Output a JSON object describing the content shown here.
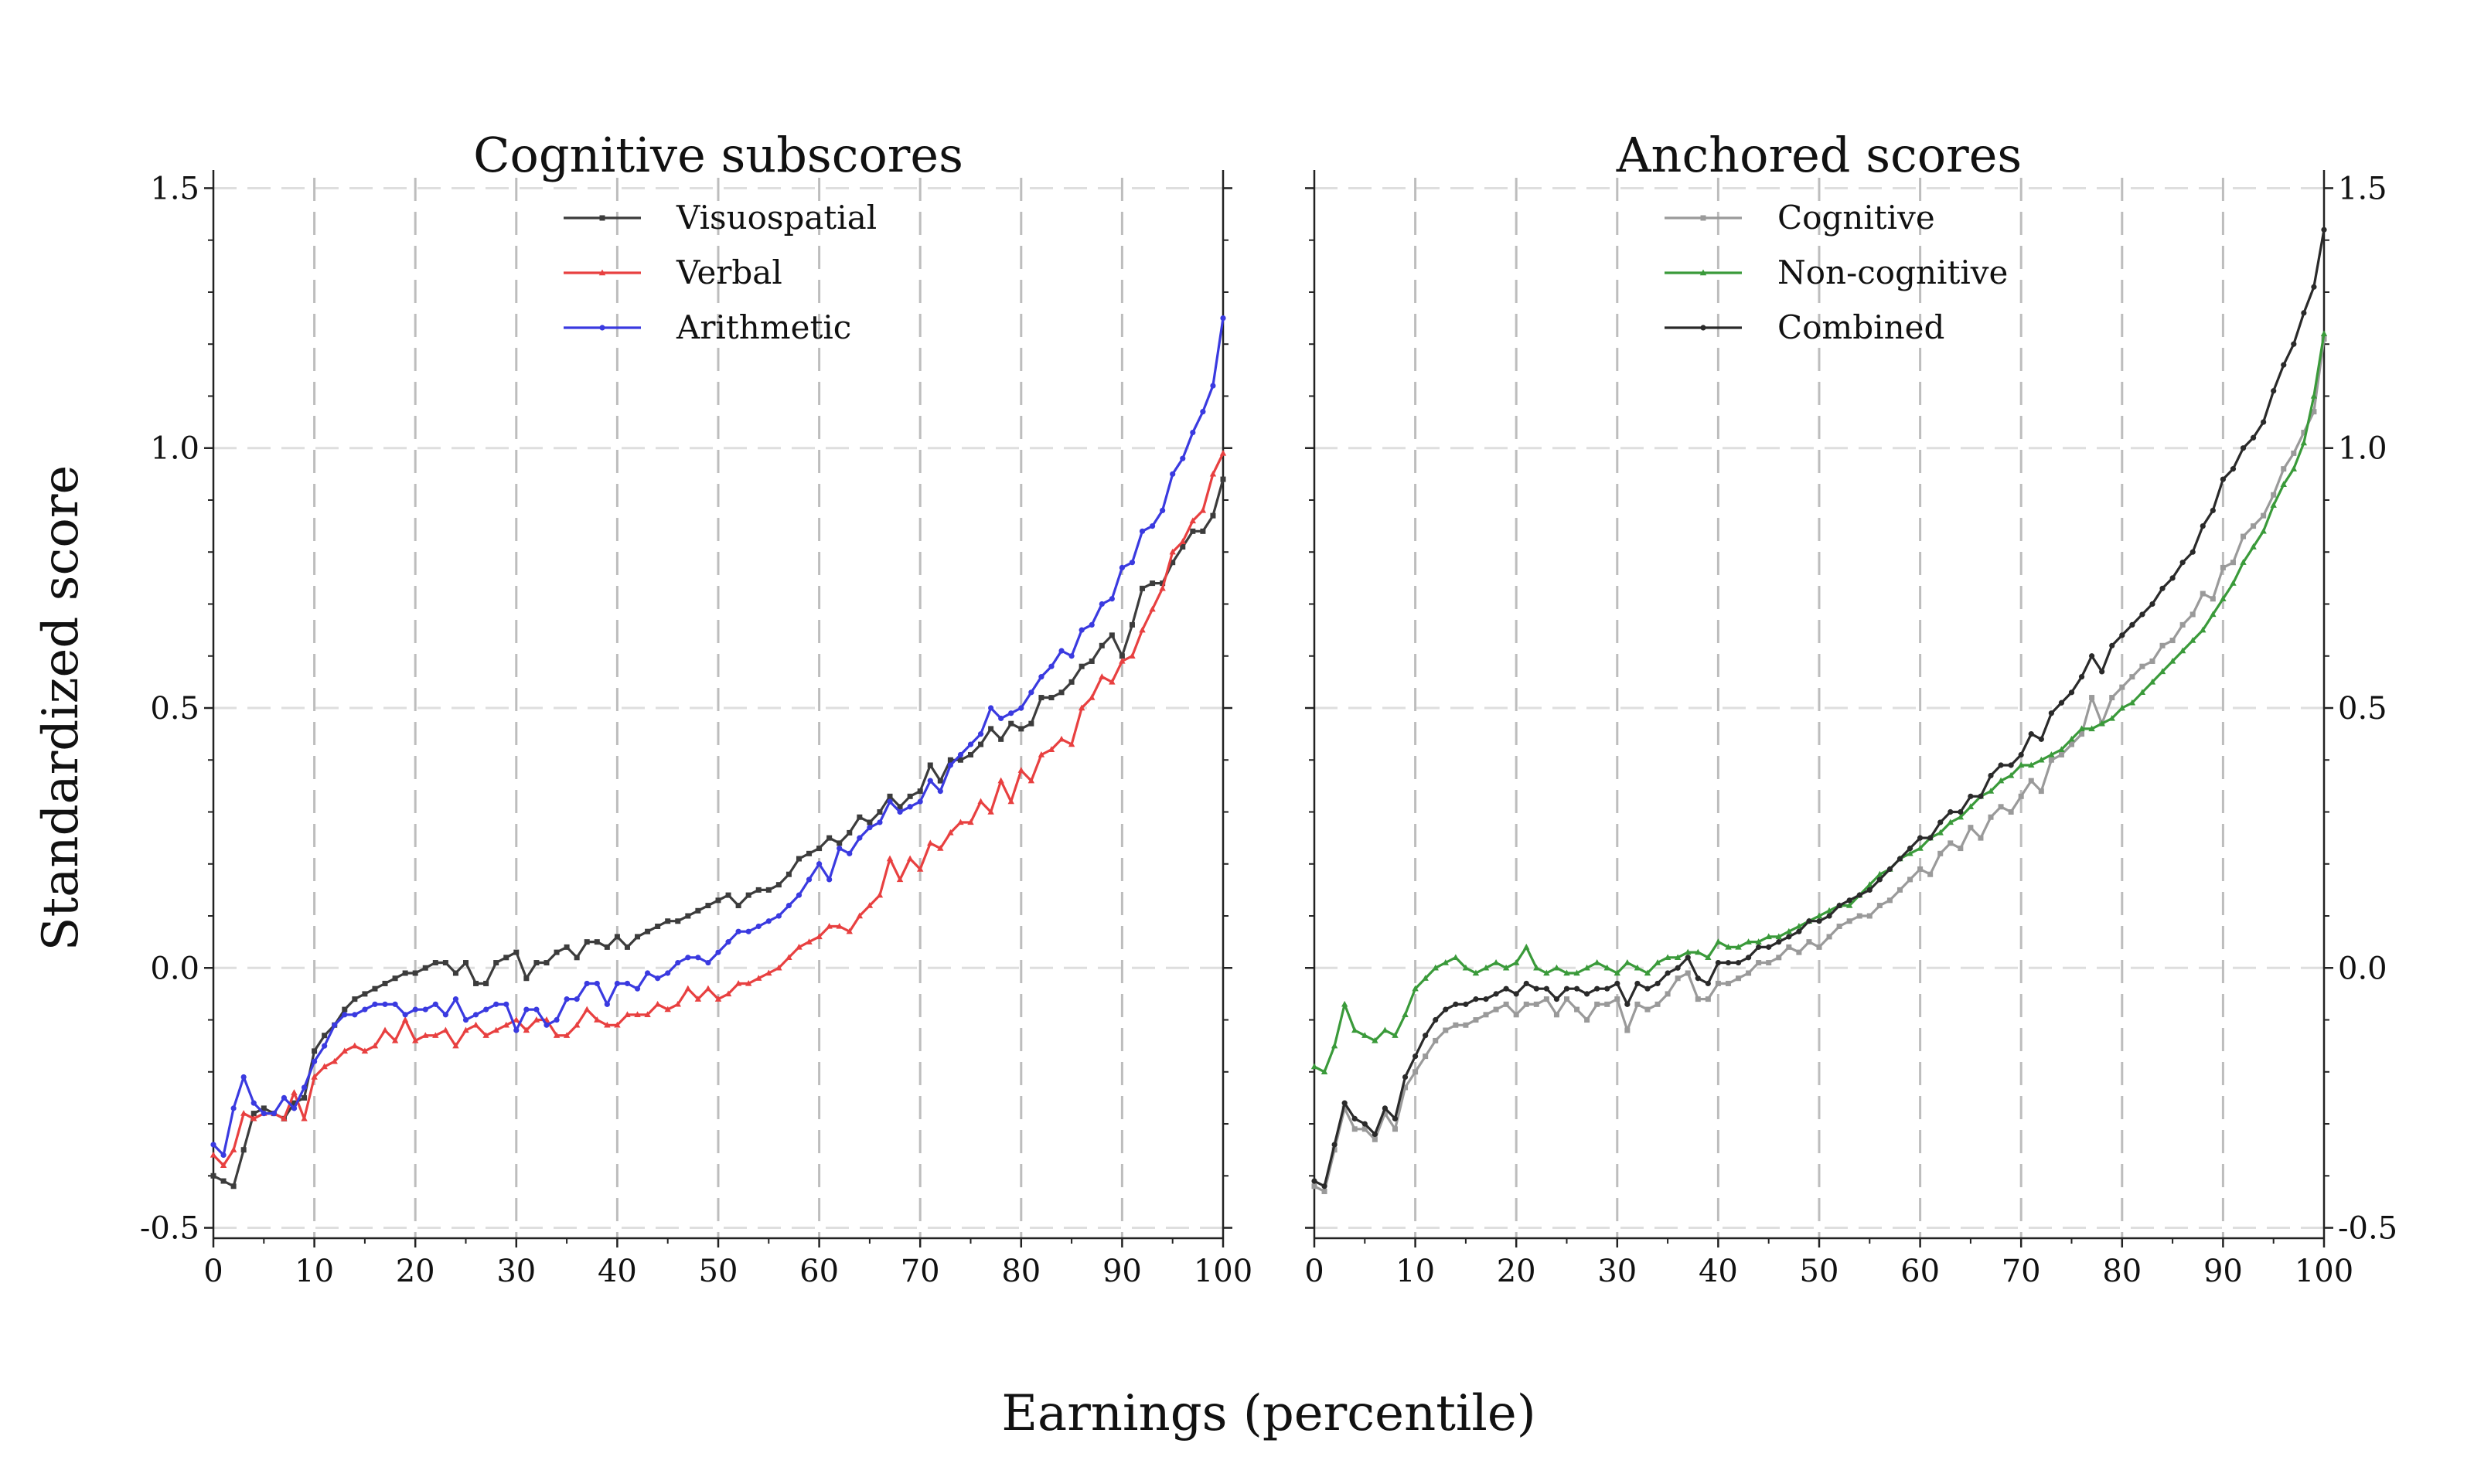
{
  "figure": {
    "xlabel": "Earnings (percentile)",
    "ylabel": "Standardized score"
  },
  "chart_data": [
    {
      "type": "line",
      "title": "Cognitive subscores",
      "xlim": [
        0,
        100
      ],
      "ylim": [
        -0.52,
        1.52
      ],
      "xticks": [
        "0",
        "10",
        "20",
        "30",
        "40",
        "50",
        "60",
        "70",
        "80",
        "90",
        "100"
      ],
      "yticks": [
        "-0.5",
        "0.0",
        "0.5",
        "1.0",
        "1.5"
      ],
      "ytick_side": "left",
      "legend": "top-center",
      "grid": "dashed",
      "x_start": 0,
      "x_step": 1,
      "series": [
        {
          "name": "Visuospatial",
          "color": "#3c3c3c",
          "marker": "square",
          "values": [
            -0.4,
            -0.41,
            -0.42,
            -0.35,
            -0.28,
            -0.27,
            -0.28,
            -0.29,
            -0.26,
            -0.25,
            -0.16,
            -0.13,
            -0.11,
            -0.08,
            -0.06,
            -0.05,
            -0.04,
            -0.03,
            -0.02,
            -0.01,
            -0.01,
            0.0,
            0.01,
            0.01,
            -0.01,
            0.01,
            -0.03,
            -0.03,
            0.01,
            0.02,
            0.03,
            -0.02,
            0.01,
            0.01,
            0.03,
            0.04,
            0.02,
            0.05,
            0.05,
            0.04,
            0.06,
            0.04,
            0.06,
            0.07,
            0.08,
            0.09,
            0.09,
            0.1,
            0.11,
            0.12,
            0.13,
            0.14,
            0.12,
            0.14,
            0.15,
            0.15,
            0.16,
            0.18,
            0.21,
            0.22,
            0.23,
            0.25,
            0.24,
            0.26,
            0.29,
            0.28,
            0.3,
            0.33,
            0.31,
            0.33,
            0.34,
            0.39,
            0.36,
            0.4,
            0.4,
            0.41,
            0.43,
            0.46,
            0.44,
            0.47,
            0.46,
            0.47,
            0.52,
            0.52,
            0.53,
            0.55,
            0.58,
            0.59,
            0.62,
            0.64,
            0.6,
            0.66,
            0.73,
            0.74,
            0.74,
            0.78,
            0.81,
            0.84,
            0.84,
            0.87,
            0.94
          ]
        },
        {
          "name": "Verbal",
          "color": "#e84040",
          "marker": "triangle",
          "values": [
            -0.36,
            -0.38,
            -0.35,
            -0.28,
            -0.29,
            -0.28,
            -0.28,
            -0.29,
            -0.24,
            -0.29,
            -0.21,
            -0.19,
            -0.18,
            -0.16,
            -0.15,
            -0.16,
            -0.15,
            -0.12,
            -0.14,
            -0.1,
            -0.14,
            -0.13,
            -0.13,
            -0.12,
            -0.15,
            -0.12,
            -0.11,
            -0.13,
            -0.12,
            -0.11,
            -0.1,
            -0.12,
            -0.1,
            -0.1,
            -0.13,
            -0.13,
            -0.11,
            -0.08,
            -0.1,
            -0.11,
            -0.11,
            -0.09,
            -0.09,
            -0.09,
            -0.07,
            -0.08,
            -0.07,
            -0.04,
            -0.06,
            -0.04,
            -0.06,
            -0.05,
            -0.03,
            -0.03,
            -0.02,
            -0.01,
            0.0,
            0.02,
            0.04,
            0.05,
            0.06,
            0.08,
            0.08,
            0.07,
            0.1,
            0.12,
            0.14,
            0.21,
            0.17,
            0.21,
            0.19,
            0.24,
            0.23,
            0.26,
            0.28,
            0.28,
            0.32,
            0.3,
            0.36,
            0.32,
            0.38,
            0.36,
            0.41,
            0.42,
            0.44,
            0.43,
            0.5,
            0.52,
            0.56,
            0.55,
            0.59,
            0.6,
            0.65,
            0.69,
            0.73,
            0.8,
            0.82,
            0.86,
            0.88,
            0.95,
            0.99
          ]
        },
        {
          "name": "Arithmetic",
          "color": "#3a3ae0",
          "marker": "circle",
          "values": [
            -0.34,
            -0.36,
            -0.27,
            -0.21,
            -0.26,
            -0.28,
            -0.28,
            -0.25,
            -0.27,
            -0.23,
            -0.18,
            -0.15,
            -0.11,
            -0.09,
            -0.09,
            -0.08,
            -0.07,
            -0.07,
            -0.07,
            -0.09,
            -0.08,
            -0.08,
            -0.07,
            -0.09,
            -0.06,
            -0.1,
            -0.09,
            -0.08,
            -0.07,
            -0.07,
            -0.12,
            -0.08,
            -0.08,
            -0.11,
            -0.1,
            -0.06,
            -0.06,
            -0.03,
            -0.03,
            -0.07,
            -0.03,
            -0.03,
            -0.04,
            -0.01,
            -0.02,
            -0.01,
            0.01,
            0.02,
            0.02,
            0.01,
            0.03,
            0.05,
            0.07,
            0.07,
            0.08,
            0.09,
            0.1,
            0.12,
            0.14,
            0.17,
            0.2,
            0.17,
            0.23,
            0.22,
            0.25,
            0.27,
            0.28,
            0.32,
            0.3,
            0.31,
            0.32,
            0.36,
            0.34,
            0.39,
            0.41,
            0.43,
            0.45,
            0.5,
            0.48,
            0.49,
            0.5,
            0.53,
            0.56,
            0.58,
            0.61,
            0.6,
            0.65,
            0.66,
            0.7,
            0.71,
            0.77,
            0.78,
            0.84,
            0.85,
            0.88,
            0.95,
            0.98,
            1.03,
            1.07,
            1.12,
            1.25
          ]
        }
      ]
    },
    {
      "type": "line",
      "title": "Anchored scores",
      "xlim": [
        0,
        100
      ],
      "ylim": [
        -0.52,
        1.52
      ],
      "xticks": [
        "0",
        "10",
        "20",
        "30",
        "40",
        "50",
        "60",
        "70",
        "80",
        "90",
        "100"
      ],
      "yticks": [
        "-0.5",
        "0.0",
        "0.5",
        "1.0",
        "1.5"
      ],
      "ytick_side": "right",
      "legend": "top-center",
      "grid": "dashed",
      "x_start": 0,
      "x_step": 1,
      "series": [
        {
          "name": "Cognitive",
          "color": "#9a9a9a",
          "marker": "square",
          "values": [
            -0.42,
            -0.43,
            -0.35,
            -0.27,
            -0.31,
            -0.31,
            -0.33,
            -0.28,
            -0.31,
            -0.23,
            -0.2,
            -0.17,
            -0.14,
            -0.12,
            -0.11,
            -0.11,
            -0.1,
            -0.09,
            -0.08,
            -0.07,
            -0.09,
            -0.07,
            -0.07,
            -0.06,
            -0.09,
            -0.06,
            -0.08,
            -0.1,
            -0.07,
            -0.07,
            -0.06,
            -0.12,
            -0.07,
            -0.08,
            -0.07,
            -0.05,
            -0.02,
            -0.01,
            -0.06,
            -0.06,
            -0.03,
            -0.03,
            -0.02,
            -0.01,
            0.01,
            0.01,
            0.02,
            0.04,
            0.03,
            0.05,
            0.04,
            0.06,
            0.08,
            0.09,
            0.1,
            0.1,
            0.12,
            0.13,
            0.15,
            0.17,
            0.19,
            0.18,
            0.22,
            0.24,
            0.23,
            0.27,
            0.25,
            0.29,
            0.31,
            0.3,
            0.33,
            0.36,
            0.34,
            0.4,
            0.41,
            0.43,
            0.45,
            0.52,
            0.47,
            0.52,
            0.54,
            0.56,
            0.58,
            0.59,
            0.62,
            0.63,
            0.66,
            0.68,
            0.72,
            0.71,
            0.77,
            0.78,
            0.83,
            0.85,
            0.87,
            0.91,
            0.96,
            0.99,
            1.03,
            1.07,
            1.21
          ]
        },
        {
          "name": "Non-cognitive",
          "color": "#3a9a3a",
          "marker": "triangle",
          "values": [
            -0.19,
            -0.2,
            -0.15,
            -0.07,
            -0.12,
            -0.13,
            -0.14,
            -0.12,
            -0.13,
            -0.09,
            -0.04,
            -0.02,
            0.0,
            0.01,
            0.02,
            0.0,
            -0.01,
            0.0,
            0.01,
            0.0,
            0.01,
            0.04,
            0.0,
            -0.01,
            0.0,
            -0.01,
            -0.01,
            0.0,
            0.01,
            0.0,
            -0.01,
            0.01,
            0.0,
            -0.01,
            0.01,
            0.02,
            0.02,
            0.03,
            0.03,
            0.02,
            0.05,
            0.04,
            0.04,
            0.05,
            0.05,
            0.06,
            0.06,
            0.07,
            0.08,
            0.09,
            0.1,
            0.11,
            0.12,
            0.12,
            0.14,
            0.16,
            0.18,
            0.19,
            0.21,
            0.22,
            0.23,
            0.25,
            0.26,
            0.28,
            0.29,
            0.31,
            0.33,
            0.34,
            0.36,
            0.37,
            0.39,
            0.39,
            0.4,
            0.41,
            0.42,
            0.44,
            0.46,
            0.46,
            0.47,
            0.48,
            0.5,
            0.51,
            0.53,
            0.55,
            0.57,
            0.59,
            0.61,
            0.63,
            0.65,
            0.68,
            0.71,
            0.74,
            0.78,
            0.81,
            0.84,
            0.89,
            0.93,
            0.96,
            1.01,
            1.1,
            1.22
          ]
        },
        {
          "name": "Combined",
          "color": "#2a2a2a",
          "marker": "circle",
          "values": [
            -0.41,
            -0.42,
            -0.34,
            -0.26,
            -0.29,
            -0.3,
            -0.32,
            -0.27,
            -0.29,
            -0.21,
            -0.17,
            -0.13,
            -0.1,
            -0.08,
            -0.07,
            -0.07,
            -0.06,
            -0.06,
            -0.05,
            -0.04,
            -0.05,
            -0.03,
            -0.04,
            -0.04,
            -0.06,
            -0.04,
            -0.04,
            -0.05,
            -0.04,
            -0.04,
            -0.03,
            -0.07,
            -0.03,
            -0.04,
            -0.03,
            -0.01,
            0.0,
            0.02,
            -0.02,
            -0.03,
            0.01,
            0.01,
            0.01,
            0.02,
            0.04,
            0.04,
            0.05,
            0.06,
            0.07,
            0.09,
            0.09,
            0.1,
            0.12,
            0.13,
            0.14,
            0.15,
            0.17,
            0.19,
            0.21,
            0.23,
            0.25,
            0.25,
            0.28,
            0.3,
            0.3,
            0.33,
            0.33,
            0.37,
            0.39,
            0.39,
            0.41,
            0.45,
            0.44,
            0.49,
            0.51,
            0.53,
            0.56,
            0.6,
            0.57,
            0.62,
            0.64,
            0.66,
            0.68,
            0.7,
            0.73,
            0.75,
            0.78,
            0.8,
            0.85,
            0.88,
            0.94,
            0.96,
            1.0,
            1.02,
            1.05,
            1.11,
            1.16,
            1.2,
            1.26,
            1.31,
            1.42
          ]
        }
      ]
    }
  ]
}
